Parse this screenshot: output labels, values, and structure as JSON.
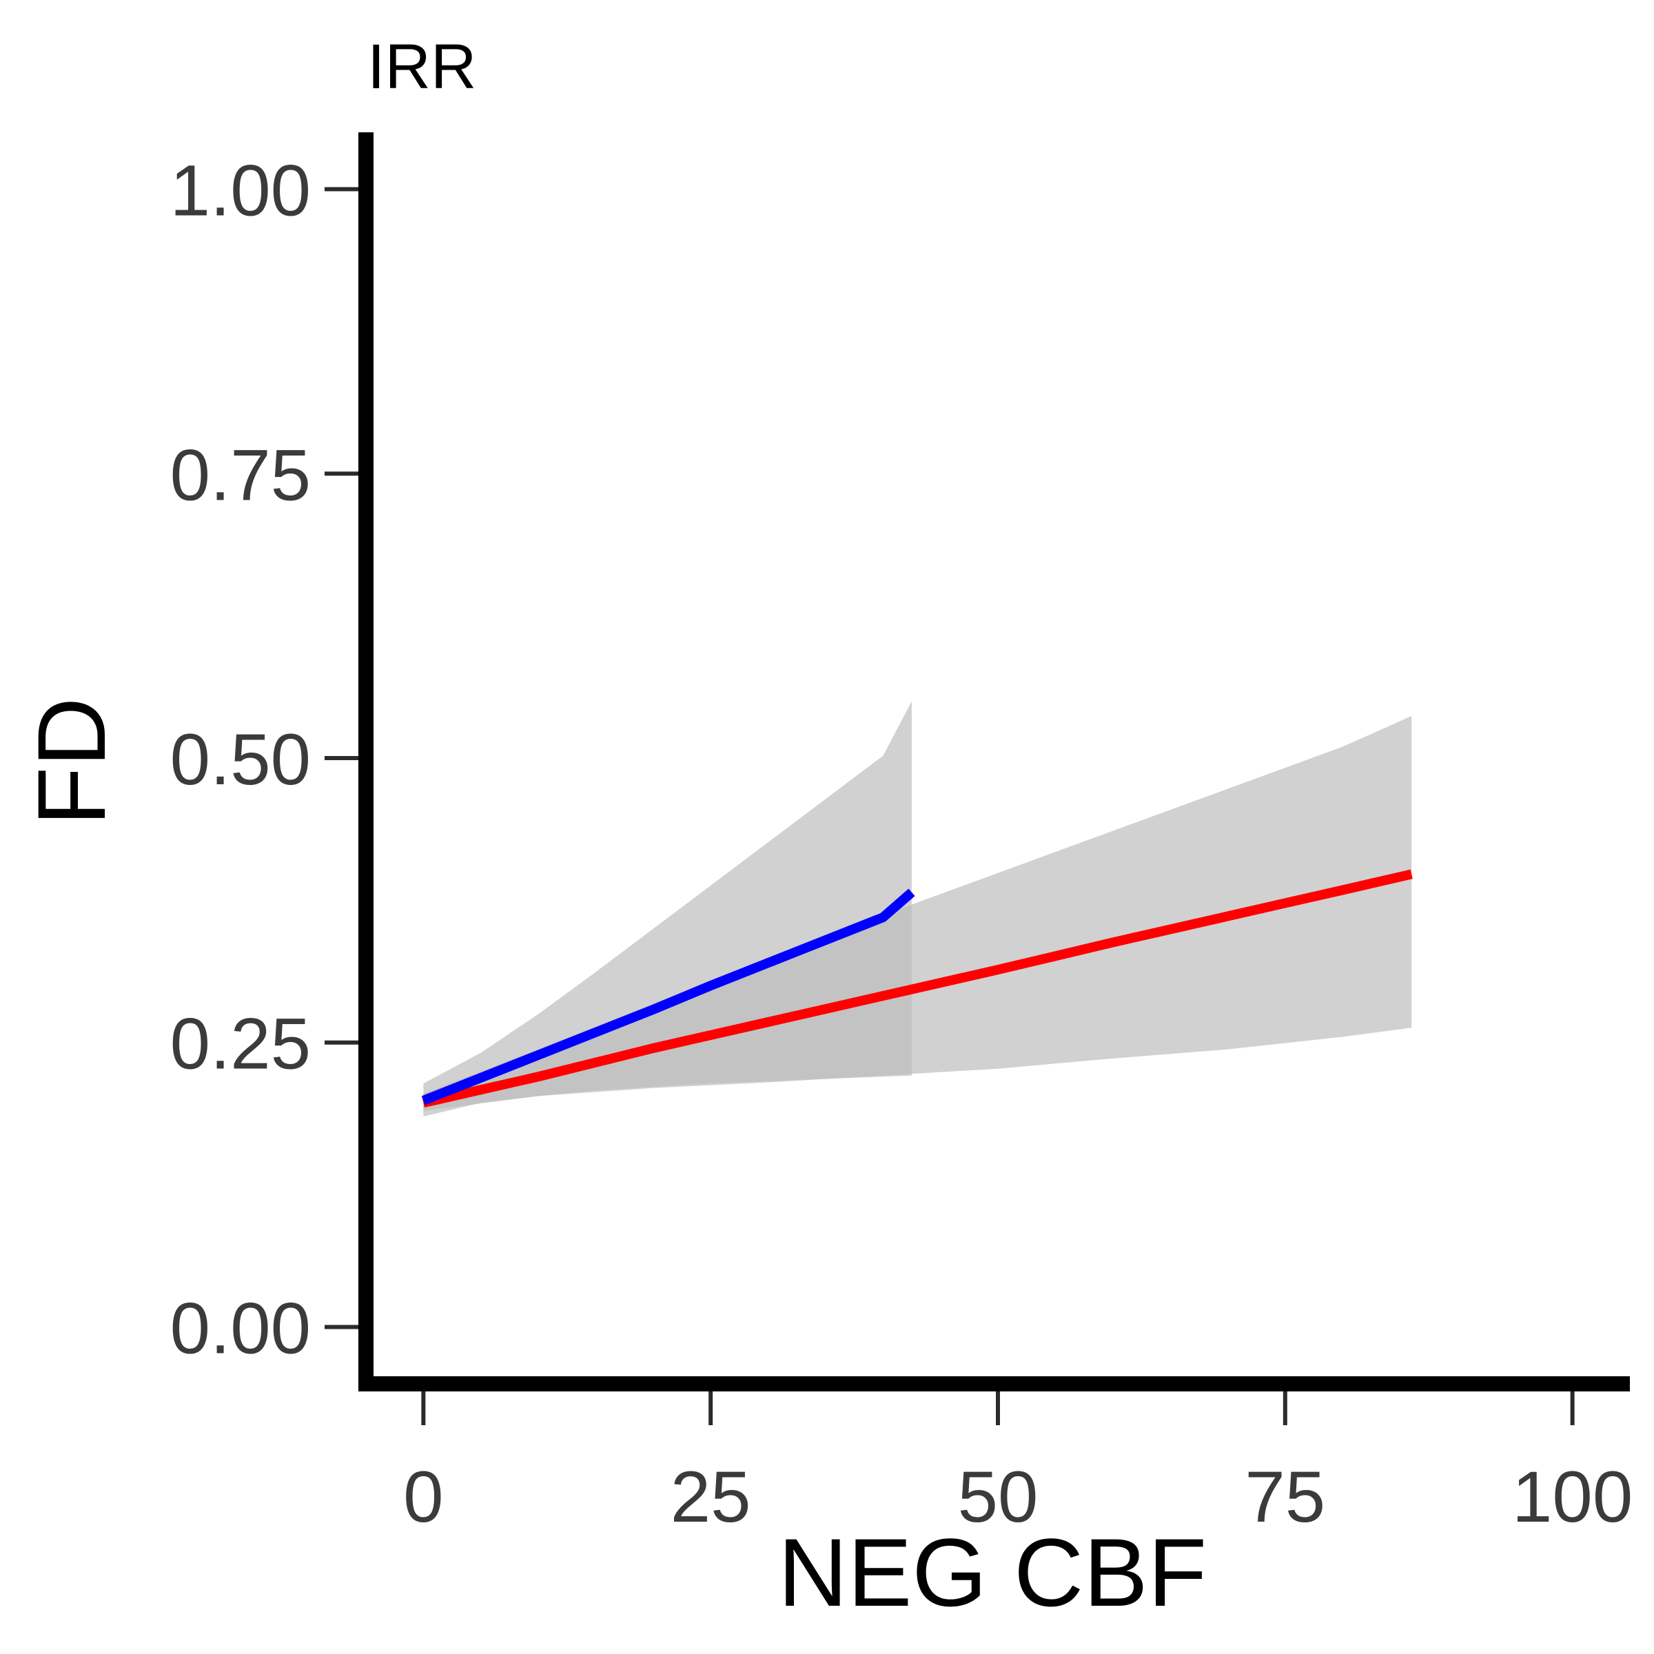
{
  "chart_data": {
    "type": "line",
    "title": "IRR",
    "xlabel": "NEG CBF",
    "ylabel": "FD",
    "xlim": [
      -5,
      105
    ],
    "ylim": [
      -0.05,
      1.05
    ],
    "x_ticks": [
      0,
      25,
      50,
      75,
      100
    ],
    "x_tick_labels": [
      "0",
      "25",
      "50",
      "75",
      "100"
    ],
    "y_ticks": [
      0,
      0.25,
      0.5,
      0.75,
      1.0
    ],
    "y_tick_labels": [
      "0.00",
      "0.25",
      "0.50",
      "0.75",
      "1.00"
    ],
    "grid": false,
    "legend": "none",
    "series": [
      {
        "color": "#0000ff",
        "band_color": "#bdbdbd",
        "x": [
          0,
          5,
          10,
          15,
          20,
          25,
          30,
          35,
          40,
          42.5
        ],
        "y": [
          0.199,
          0.219,
          0.239,
          0.259,
          0.279,
          0.3,
          0.32,
          0.34,
          0.36,
          0.382
        ],
        "lower": [
          0.185,
          0.197,
          0.203,
          0.208,
          0.211,
          0.214,
          0.216,
          0.218,
          0.22,
          0.221
        ],
        "upper": [
          0.214,
          0.241,
          0.275,
          0.312,
          0.35,
          0.388,
          0.426,
          0.464,
          0.502,
          0.55
        ]
      },
      {
        "color": "#ff0000",
        "band_color": "#bdbdbd",
        "x": [
          0,
          10,
          20,
          30,
          40,
          50,
          60,
          70,
          80,
          86
        ],
        "y": [
          0.197,
          0.22,
          0.245,
          0.268,
          0.291,
          0.314,
          0.338,
          0.361,
          0.384,
          0.398
        ],
        "lower": [
          0.19,
          0.203,
          0.21,
          0.215,
          0.221,
          0.227,
          0.236,
          0.244,
          0.255,
          0.263
        ],
        "upper": [
          0.205,
          0.244,
          0.284,
          0.323,
          0.362,
          0.399,
          0.436,
          0.473,
          0.51,
          0.537
        ]
      }
    ]
  }
}
